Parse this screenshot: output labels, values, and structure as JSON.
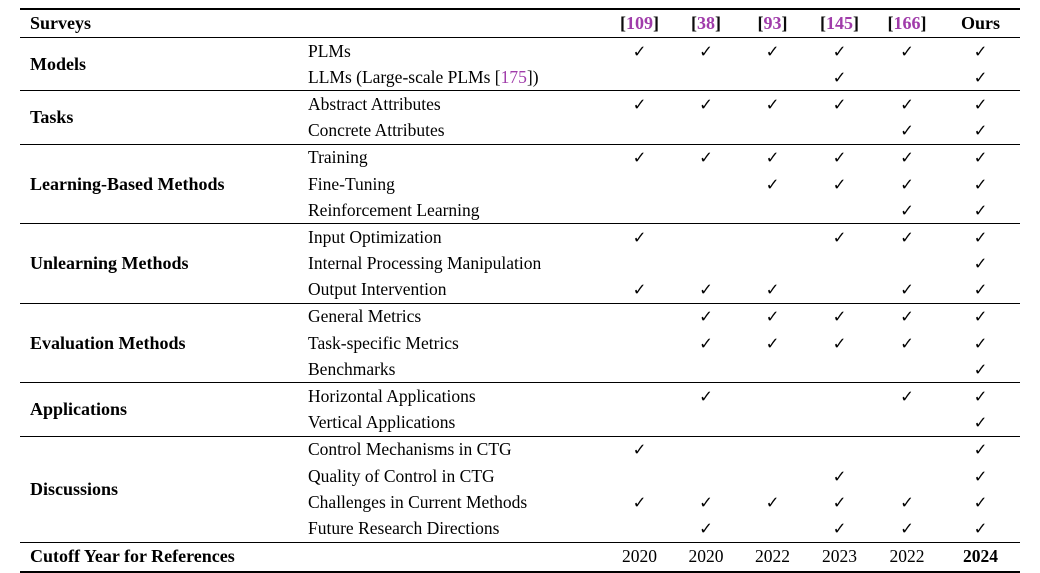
{
  "colors": {
    "citation": "#A03CAA",
    "text": "#000000",
    "rule": "#000000",
    "background": "#FFFFFF"
  },
  "checkmark_glyph": "✓",
  "header": {
    "first_col": "Surveys",
    "columns": [
      {
        "ref": "109"
      },
      {
        "ref": "38"
      },
      {
        "ref": "93"
      },
      {
        "ref": "145"
      },
      {
        "ref": "166"
      },
      {
        "label": "Ours"
      }
    ]
  },
  "sections": [
    {
      "name": "Models",
      "rows": [
        {
          "label": "PLMs",
          "checks": [
            1,
            1,
            1,
            1,
            1,
            1
          ]
        },
        {
          "parts": [
            {
              "text": "LLMs (Large-scale PLMs ["
            },
            {
              "text": "175",
              "cite": true
            },
            {
              "text": "])"
            }
          ],
          "checks": [
            0,
            0,
            0,
            1,
            0,
            1
          ]
        }
      ]
    },
    {
      "name": "Tasks",
      "rows": [
        {
          "label": "Abstract Attributes",
          "checks": [
            1,
            1,
            1,
            1,
            1,
            1
          ]
        },
        {
          "label": "Concrete Attributes",
          "checks": [
            0,
            0,
            0,
            0,
            1,
            1
          ]
        }
      ]
    },
    {
      "name": "Learning-Based Methods",
      "rows": [
        {
          "label": "Training",
          "checks": [
            1,
            1,
            1,
            1,
            1,
            1
          ]
        },
        {
          "label": "Fine-Tuning",
          "checks": [
            0,
            0,
            1,
            1,
            1,
            1
          ]
        },
        {
          "label": "Reinforcement Learning",
          "checks": [
            0,
            0,
            0,
            0,
            1,
            1
          ]
        }
      ]
    },
    {
      "name": "Unlearning Methods",
      "rows": [
        {
          "label": "Input Optimization",
          "checks": [
            1,
            0,
            0,
            1,
            1,
            1
          ]
        },
        {
          "label": "Internal Processing Manipulation",
          "checks": [
            0,
            0,
            0,
            0,
            0,
            1
          ]
        },
        {
          "label": "Output Intervention",
          "checks": [
            1,
            1,
            1,
            0,
            1,
            1
          ]
        }
      ]
    },
    {
      "name": "Evaluation Methods",
      "rows": [
        {
          "label": "General Metrics",
          "checks": [
            0,
            1,
            1,
            1,
            1,
            1
          ]
        },
        {
          "label": "Task-specific Metrics",
          "checks": [
            0,
            1,
            1,
            1,
            1,
            1
          ]
        },
        {
          "label": "Benchmarks",
          "checks": [
            0,
            0,
            0,
            0,
            0,
            1
          ]
        }
      ]
    },
    {
      "name": "Applications",
      "rows": [
        {
          "label": "Horizontal Applications",
          "checks": [
            0,
            1,
            0,
            0,
            1,
            1
          ]
        },
        {
          "label": "Vertical Applications",
          "checks": [
            0,
            0,
            0,
            0,
            0,
            1
          ]
        }
      ]
    },
    {
      "name": "Discussions",
      "rows": [
        {
          "label": "Control Mechanisms in CTG",
          "checks": [
            1,
            0,
            0,
            0,
            0,
            1
          ]
        },
        {
          "label": "Quality of Control in CTG",
          "checks": [
            0,
            0,
            0,
            1,
            0,
            1
          ]
        },
        {
          "label": "Challenges in Current Methods",
          "checks": [
            1,
            1,
            1,
            1,
            1,
            1
          ]
        },
        {
          "label": "Future Research Directions",
          "checks": [
            0,
            1,
            0,
            1,
            1,
            1
          ]
        }
      ]
    }
  ],
  "footer": {
    "label": "Cutoff Year for References",
    "values": [
      {
        "text": "2020",
        "bold": false
      },
      {
        "text": "2020",
        "bold": false
      },
      {
        "text": "2022",
        "bold": false
      },
      {
        "text": "2023",
        "bold": false
      },
      {
        "text": "2022",
        "bold": false
      },
      {
        "text": "2024",
        "bold": true
      }
    ]
  }
}
